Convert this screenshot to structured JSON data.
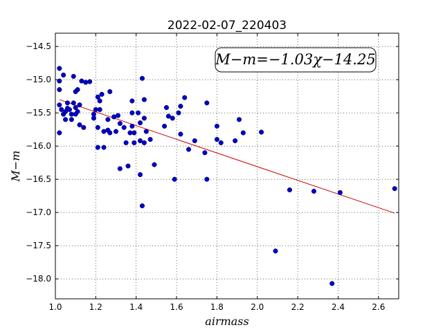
{
  "chart_data": {
    "type": "scatter",
    "title": "2022-02-07_220403",
    "xlabel": "airmass",
    "ylabel": "M−m",
    "xlim": [
      1.0,
      2.7
    ],
    "ylim": [
      -18.3,
      -14.3
    ],
    "xticks": [
      1.0,
      1.2,
      1.4,
      1.6,
      1.8,
      2.0,
      2.2,
      2.4,
      2.6
    ],
    "xtick_labels": [
      "1.0",
      "1.2",
      "1.4",
      "1.6",
      "1.8",
      "2.0",
      "2.2",
      "2.4",
      "2.6"
    ],
    "yticks": [
      -14.5,
      -15.0,
      -15.5,
      -16.0,
      -16.5,
      -17.0,
      -17.5,
      -18.0
    ],
    "ytick_labels": [
      "−14.5",
      "−15.0",
      "−15.5",
      "−16.0",
      "−16.5",
      "−17.0",
      "−17.5",
      "−18.0"
    ],
    "grid": true,
    "annotation": "M−m=−1.03χ−14.25",
    "marker_color": "#0000cc",
    "fit_color": "#cc0000",
    "fit": {
      "slope": -1.03,
      "intercept": -14.25,
      "x_range": [
        1.02,
        2.68
      ]
    },
    "points": [
      [
        1.02,
        -14.83
      ],
      [
        1.04,
        -14.93
      ],
      [
        1.02,
        -15.02
      ],
      [
        1.02,
        -15.15
      ],
      [
        1.02,
        -15.38
      ],
      [
        1.03,
        -15.45
      ],
      [
        1.04,
        -15.52
      ],
      [
        1.05,
        -15.48
      ],
      [
        1.06,
        -15.35
      ],
      [
        1.06,
        -15.43
      ],
      [
        1.05,
        -15.6
      ],
      [
        1.07,
        -15.45
      ],
      [
        1.08,
        -15.6
      ],
      [
        1.08,
        -15.52
      ],
      [
        1.02,
        -15.8
      ],
      [
        1.09,
        -14.95
      ],
      [
        1.1,
        -15.18
      ],
      [
        1.11,
        -15.15
      ],
      [
        1.09,
        -15.35
      ],
      [
        1.1,
        -15.42
      ],
      [
        1.11,
        -15.48
      ],
      [
        1.12,
        -15.38
      ],
      [
        1.1,
        -15.52
      ],
      [
        1.12,
        -15.68
      ],
      [
        1.13,
        -15.02
      ],
      [
        1.15,
        -15.04
      ],
      [
        1.17,
        -15.03
      ],
      [
        1.14,
        -15.72
      ],
      [
        1.2,
        -15.45
      ],
      [
        1.21,
        -15.26
      ],
      [
        1.22,
        -15.32
      ],
      [
        1.23,
        -15.22
      ],
      [
        1.22,
        -15.45
      ],
      [
        1.27,
        -15.18
      ],
      [
        1.19,
        -15.52
      ],
      [
        1.19,
        -15.58
      ],
      [
        1.21,
        -15.72
      ],
      [
        1.24,
        -15.78
      ],
      [
        1.26,
        -15.6
      ],
      [
        1.26,
        -15.76
      ],
      [
        1.27,
        -15.8
      ],
      [
        1.29,
        -15.56
      ],
      [
        1.3,
        -15.78
      ],
      [
        1.31,
        -15.54
      ],
      [
        1.32,
        -15.66
      ],
      [
        1.34,
        -15.72
      ],
      [
        1.35,
        -15.95
      ],
      [
        1.37,
        -15.8
      ],
      [
        1.38,
        -15.7
      ],
      [
        1.39,
        -15.8
      ],
      [
        1.38,
        -15.5
      ],
      [
        1.38,
        -15.32
      ],
      [
        1.41,
        -15.5
      ],
      [
        1.42,
        -15.65
      ],
      [
        1.43,
        -14.98
      ],
      [
        1.44,
        -15.3
      ],
      [
        1.44,
        -15.58
      ],
      [
        1.45,
        -15.78
      ],
      [
        1.47,
        -15.9
      ],
      [
        1.42,
        -15.92
      ],
      [
        1.39,
        -15.95
      ],
      [
        1.44,
        -15.95
      ],
      [
        1.21,
        -16.02
      ],
      [
        1.24,
        -16.02
      ],
      [
        1.32,
        -16.34
      ],
      [
        1.36,
        -16.3
      ],
      [
        1.42,
        -16.43
      ],
      [
        1.49,
        -16.28
      ],
      [
        1.43,
        -16.9
      ],
      [
        1.54,
        -15.7
      ],
      [
        1.55,
        -15.42
      ],
      [
        1.56,
        -15.55
      ],
      [
        1.58,
        -15.58
      ],
      [
        1.61,
        -15.5
      ],
      [
        1.62,
        -15.4
      ],
      [
        1.64,
        -15.27
      ],
      [
        1.62,
        -15.82
      ],
      [
        1.66,
        -16.05
      ],
      [
        1.69,
        -15.92
      ],
      [
        1.74,
        -16.1
      ],
      [
        1.75,
        -15.35
      ],
      [
        1.8,
        -15.7
      ],
      [
        1.8,
        -15.9
      ],
      [
        1.82,
        -15.95
      ],
      [
        1.59,
        -16.5
      ],
      [
        1.75,
        -16.5
      ],
      [
        1.89,
        -15.92
      ],
      [
        1.91,
        -15.6
      ],
      [
        1.93,
        -15.8
      ],
      [
        2.02,
        -15.79
      ],
      [
        2.09,
        -17.58
      ],
      [
        2.16,
        -16.66
      ],
      [
        2.28,
        -16.68
      ],
      [
        2.41,
        -16.7
      ],
      [
        2.37,
        -18.07
      ],
      [
        2.68,
        -16.64
      ]
    ]
  }
}
